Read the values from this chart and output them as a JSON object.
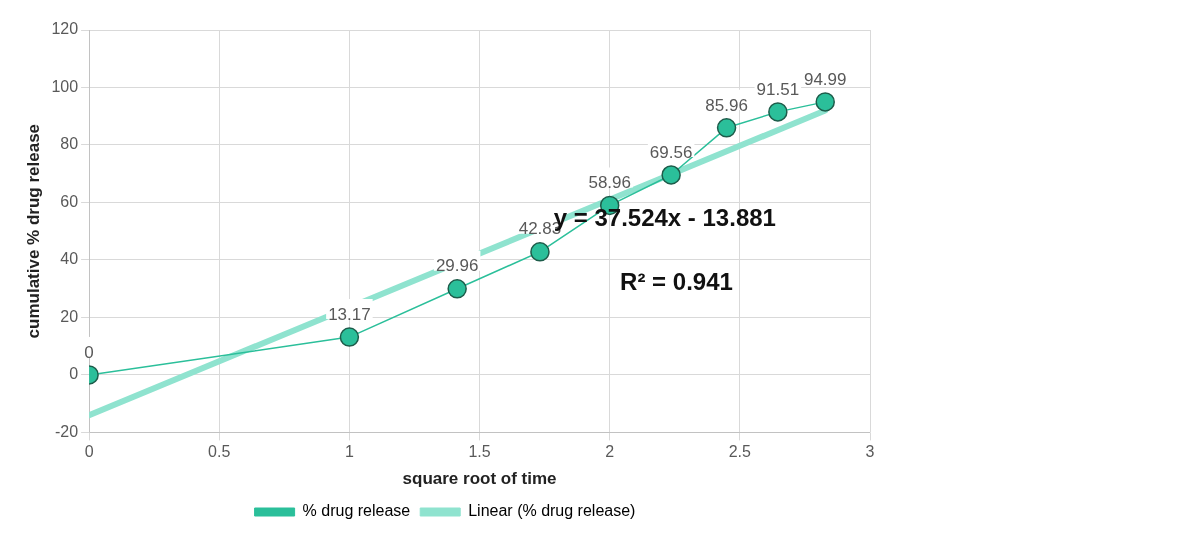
{
  "chart_data": {
    "type": "line",
    "xlabel": "square root of time",
    "ylabel": "cumulative % drug release",
    "xlim": [
      0,
      3
    ],
    "xticks": [
      0,
      0.5,
      1,
      1.5,
      2,
      2.5,
      3
    ],
    "ylim": [
      -20,
      120
    ],
    "yticks": [
      -20,
      0,
      20,
      40,
      60,
      80,
      100,
      120
    ],
    "grid": true,
    "legend": "bottom",
    "marker": "circle",
    "series": [
      {
        "name": "% drug release",
        "color": "#2bbf9a",
        "x": [
          0,
          1,
          1.414,
          1.732,
          2,
          2.236,
          2.449,
          2.646,
          2.828
        ],
        "values": [
          0,
          13.17,
          29.96,
          42.83,
          58.96,
          69.56,
          85.96,
          91.51,
          94.99
        ],
        "value_labels": [
          "0",
          "13.17",
          "29.96",
          "42.83",
          "58.96",
          "69.56",
          "85.96",
          "91.51",
          "94.99"
        ]
      },
      {
        "name": "Linear (% drug release)",
        "color": "#8fe3cf",
        "marker": "none",
        "x": [
          0,
          2.828
        ],
        "values": [
          -14,
          92
        ]
      }
    ],
    "annotations": [
      "y = 37.524x - 13.881",
      "R² = 0.941"
    ]
  }
}
